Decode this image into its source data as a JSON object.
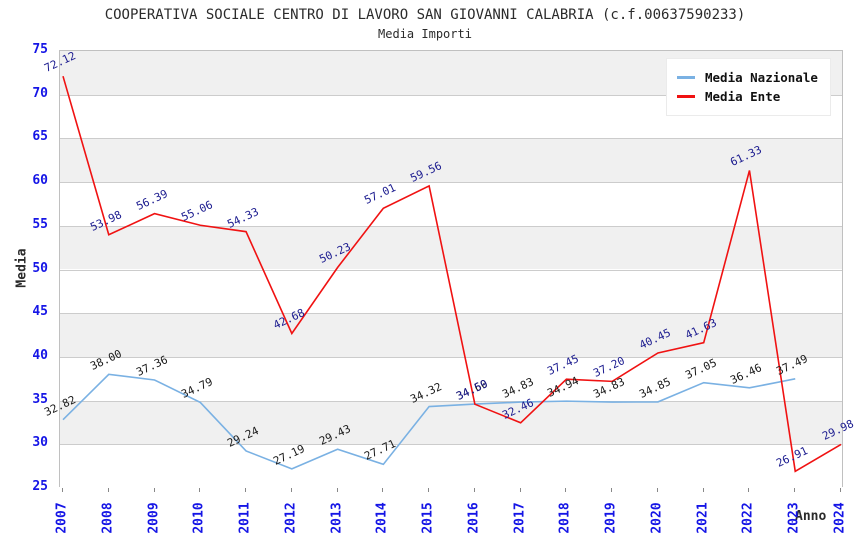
{
  "header": {
    "title": "COOPERATIVA SOCIALE CENTRO DI LAVORO SAN GIOVANNI CALABRIA (c.f.00637590233)",
    "subtitle": "Media Importi"
  },
  "axes": {
    "y_label": "Media",
    "x_label": "Anno"
  },
  "legend": {
    "items": [
      {
        "label": "Media Nazionale",
        "color": "#7ab1e3"
      },
      {
        "label": "Media Ente",
        "color": "#f01212"
      }
    ]
  },
  "chart_data": {
    "type": "line",
    "title": "COOPERATIVA SOCIALE CENTRO DI LAVORO SAN GIOVANNI CALABRIA (c.f.00637590233)",
    "subtitle": "Media Importi",
    "xlabel": "Anno",
    "ylabel": "Media",
    "ylim": [
      25,
      75
    ],
    "ytick_step": 5,
    "grid": "horizontal",
    "legend_position": "top-right",
    "band_colors": [
      "#f0f0f0",
      "#ffffff"
    ],
    "categories": [
      "2007",
      "2008",
      "2009",
      "2010",
      "2011",
      "2012",
      "2013",
      "2014",
      "2015",
      "2016",
      "2017",
      "2018",
      "2019",
      "2020",
      "2021",
      "2022",
      "2023",
      "2024"
    ],
    "series": [
      {
        "name": "Media Nazionale",
        "color": "#7ab1e3",
        "label_color": "#1a1a1a",
        "values": [
          32.82,
          38.0,
          37.36,
          34.79,
          29.24,
          27.19,
          29.43,
          27.71,
          34.32,
          34.6,
          34.83,
          34.94,
          34.83,
          34.85,
          37.05,
          36.46,
          37.49,
          null
        ]
      },
      {
        "name": "Media Ente",
        "color": "#f01212",
        "label_color": "#1b1b8f",
        "values": [
          72.12,
          53.98,
          56.39,
          55.06,
          54.33,
          42.68,
          50.23,
          57.01,
          59.56,
          34.59,
          32.46,
          37.45,
          37.2,
          40.45,
          41.63,
          61.33,
          26.91,
          29.98
        ]
      }
    ],
    "tick_color": "#1515e6"
  }
}
